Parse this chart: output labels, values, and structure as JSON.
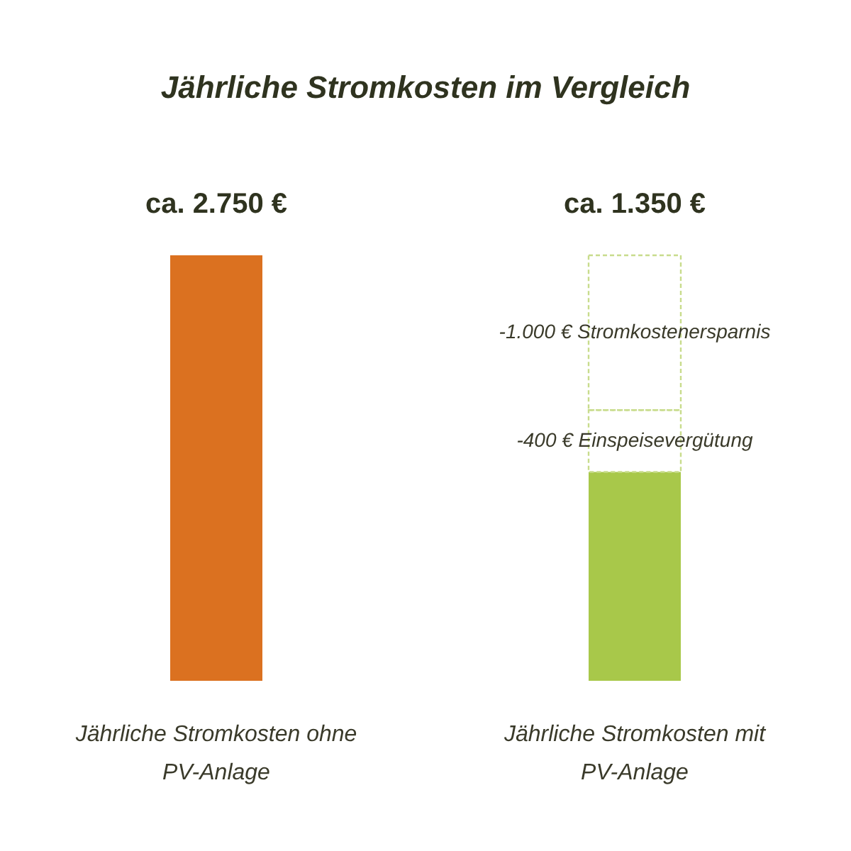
{
  "chart_data": {
    "type": "bar",
    "title": "Jährliche Stromkosten im Vergleich",
    "stacked": true,
    "categories": [
      "Jährliche Stromkosten ohne PV-Anlage",
      "Jährliche Stromkosten mit PV-Anlage"
    ],
    "series": [
      {
        "colors": [
          "#db7120",
          "#a8c84a"
        ],
        "values": [
          2750,
          1350
        ],
        "value_labels": [
          "ca. 2.750 €",
          "ca. 1.350 €"
        ]
      },
      {
        "color": "#c8dc8c",
        "line_style": "dashed",
        "values": [
          null,
          400
        ]
      },
      {
        "color": "#c8dc8c",
        "line_style": "dashed",
        "values": [
          null,
          1000
        ]
      }
    ],
    "annotations": [
      "-1.000 € Stromkostenersparnis",
      "-400 € Einspeisevergütung"
    ]
  }
}
